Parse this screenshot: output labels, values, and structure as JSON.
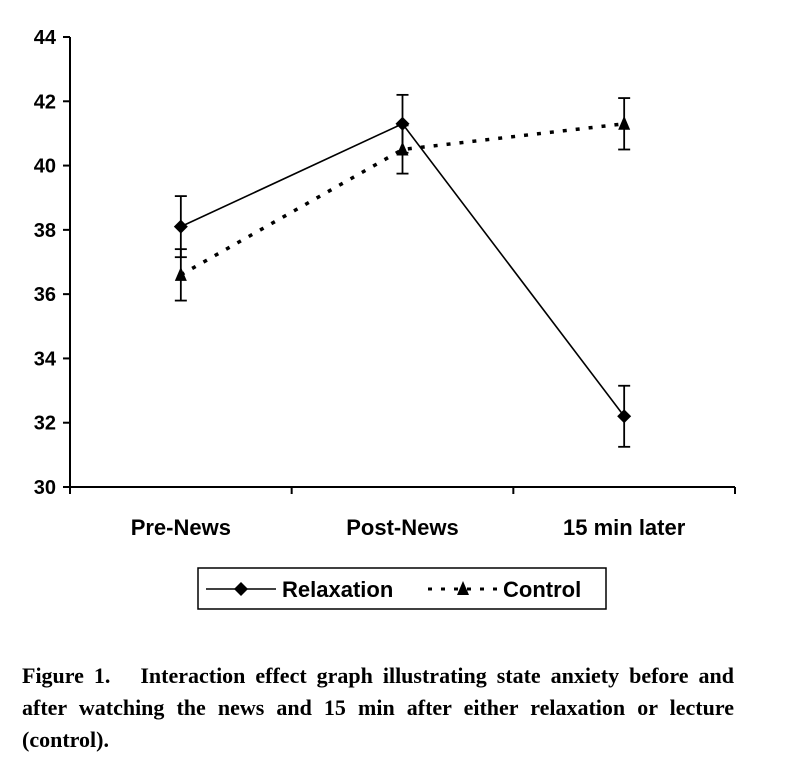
{
  "chart_data": {
    "type": "line",
    "title": "",
    "xlabel": "",
    "ylabel": "",
    "categories": [
      "Pre-News",
      "Post-News",
      "15 min later"
    ],
    "ylim": [
      30,
      44
    ],
    "yticks": [
      30,
      32,
      34,
      36,
      38,
      40,
      42,
      44
    ],
    "grid": false,
    "legend_position": "bottom",
    "series": [
      {
        "name": "Relaxation",
        "values": [
          38.1,
          41.3,
          32.2
        ],
        "errors": [
          0.95,
          0.9,
          0.95
        ],
        "line": "solid",
        "marker": "diamond",
        "color": "#000000"
      },
      {
        "name": "Control",
        "values": [
          36.6,
          40.5,
          41.3
        ],
        "errors": [
          0.8,
          0.75,
          0.8
        ],
        "line": "dotted",
        "marker": "triangle",
        "color": "#000000"
      }
    ]
  },
  "caption": "Figure 1.   Interaction effect graph illustrating state anxiety before and after watching the news and 15 min after either relaxation or lecture (control)."
}
